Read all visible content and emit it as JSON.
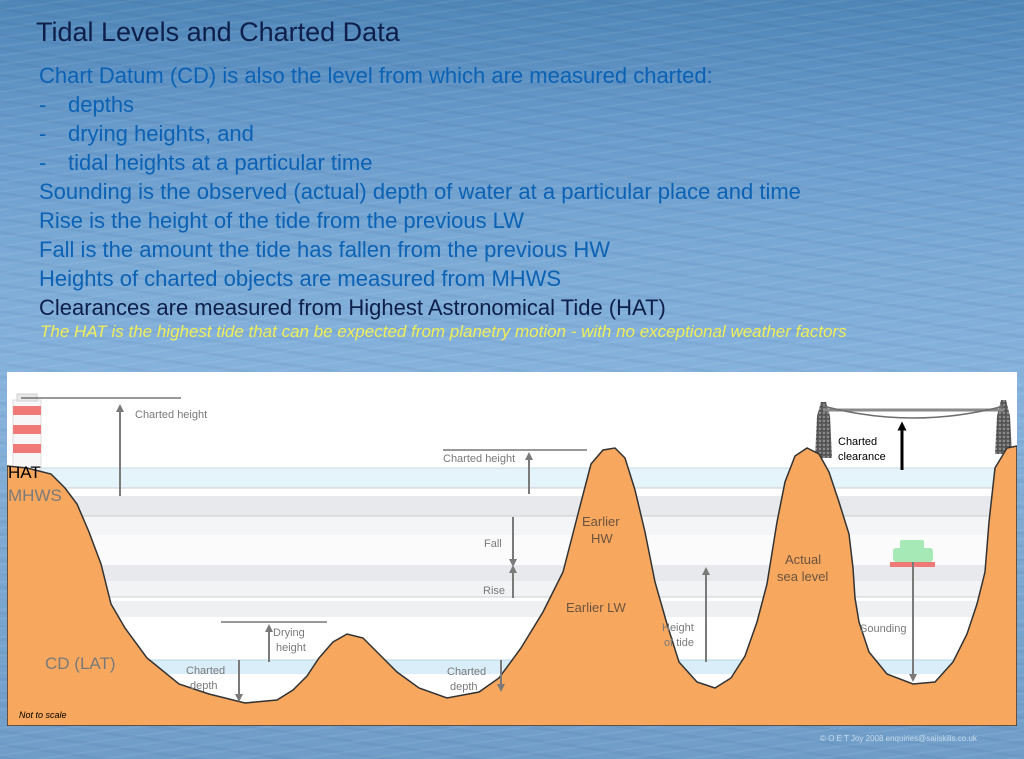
{
  "header": {
    "title": "Tidal Levels and Charted Data",
    "lines": [
      "Chart Datum (CD) is also the level from which are measured charted:",
      "depths",
      "drying heights, and",
      "tidal heights at a particular time",
      "Sounding is the observed (actual) depth of water at a particular place and time",
      "Rise is the height of the tide from the previous LW",
      "Fall is the amount the tide has fallen from the previous HW",
      "Heights of charted objects are measured from MHWS",
      "Clearances are measured from Highest Astronomical Tide (HAT)"
    ],
    "dash": "-",
    "note": "The HAT is the highest tide that can be expected from planetry motion - with no exceptional weather factors"
  },
  "diagram": {
    "level_labels": {
      "hat": "HAT",
      "mhws": "MHWS",
      "cd": "CD (LAT)"
    },
    "labels": {
      "charted_height_left": "Charted height",
      "charted_height_mid": "Charted height",
      "charted_clearance_1": "Charted",
      "charted_clearance_2": "clearance",
      "fall": "Fall",
      "rise": "Rise",
      "earlier_hw_1": "Earlier",
      "earlier_hw_2": "HW",
      "earlier_lw": "Earlier LW",
      "actual_sea_1": "Actual",
      "actual_sea_2": "sea level",
      "drying_1": "Drying",
      "drying_2": "height",
      "height_tide_1": "Height",
      "height_tide_2": "of tide",
      "sounding": "Sounding",
      "charted_depth_left_1": "Charted",
      "charted_depth_left_2": "depth",
      "charted_depth_mid_1": "Charted",
      "charted_depth_mid_2": "depth",
      "not_to_scale": "Not to scale"
    },
    "colors": {
      "seabed": "#f7a75e",
      "water_band_light": "#e6f3fa",
      "grey_band": "#e7e9ec",
      "hat_text": "#000000",
      "mhws_text": "#7a7a7a",
      "cd_text": "#7a7a7a"
    }
  },
  "footer": {
    "copyright": "© O E T Joy 2008 enquiries@sailskills.co.uk"
  }
}
